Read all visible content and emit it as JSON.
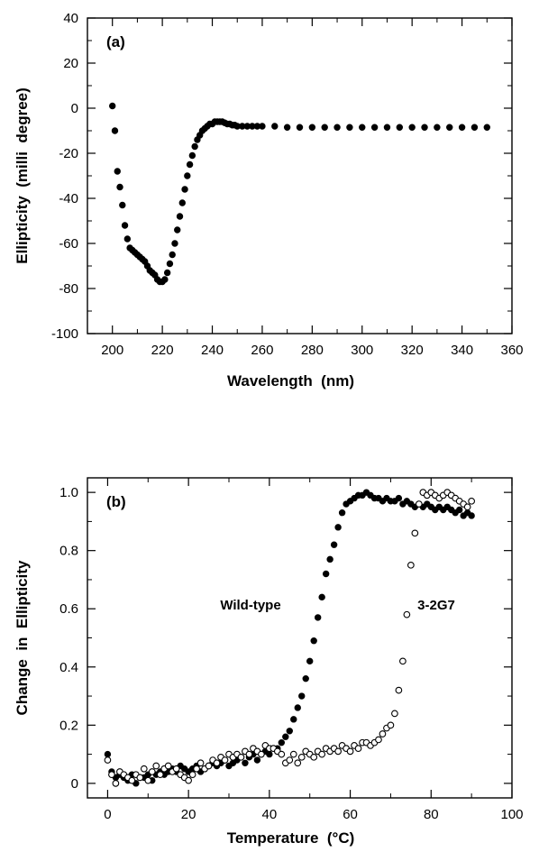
{
  "chart_data": [
    {
      "type": "scatter",
      "panel_label": "(a)",
      "xlabel": "Wavelength  (nm)",
      "ylabel": "Ellipticity  (milli  degree)",
      "xlim": [
        190,
        360
      ],
      "ylim": [
        -100,
        40
      ],
      "xticks": [
        200,
        220,
        240,
        260,
        280,
        300,
        320,
        340,
        360
      ],
      "yticks": [
        -100,
        -80,
        -60,
        -40,
        -20,
        0,
        20,
        40
      ],
      "grid": false,
      "series": [
        {
          "marker": "filled-circle",
          "color": "#000000",
          "x": [
            200,
            201,
            202,
            203,
            204,
            205,
            206,
            207,
            208,
            209,
            210,
            211,
            212,
            213,
            214,
            215,
            216,
            217,
            218,
            219,
            220,
            221,
            222,
            223,
            224,
            225,
            226,
            227,
            228,
            229,
            230,
            231,
            232,
            233,
            234,
            235,
            236,
            237,
            238,
            239,
            240,
            241,
            242,
            243,
            244,
            245,
            246,
            247,
            248,
            249,
            250,
            252,
            254,
            256,
            258,
            260,
            265,
            270,
            275,
            280,
            285,
            290,
            295,
            300,
            305,
            310,
            315,
            320,
            325,
            330,
            335,
            340,
            345,
            350
          ],
          "y": [
            1,
            -10,
            -28,
            -35,
            -43,
            -52,
            -58,
            -62,
            -63,
            -64,
            -65,
            -66,
            -67,
            -68,
            -70,
            -72,
            -73,
            -74,
            -76,
            -77,
            -77,
            -76,
            -73,
            -69,
            -65,
            -60,
            -54,
            -48,
            -42,
            -36,
            -30,
            -25,
            -21,
            -17,
            -14,
            -12,
            -10,
            -9,
            -8,
            -7,
            -7,
            -6,
            -6,
            -6,
            -6,
            -6.5,
            -7,
            -7,
            -7.5,
            -7.5,
            -8,
            -8,
            -8,
            -8,
            -8,
            -8,
            -8,
            -8.5,
            -8.5,
            -8.5,
            -8.5,
            -8.5,
            -8.5,
            -8.5,
            -8.5,
            -8.5,
            -8.5,
            -8.5,
            -8.5,
            -8.5,
            -8.5,
            -8.5,
            -8.5,
            -8.5
          ]
        }
      ]
    },
    {
      "type": "scatter",
      "panel_label": "(b)",
      "xlabel": "Temperature  (°C)",
      "ylabel": "Change  in  Ellipticity",
      "xlim": [
        -5,
        100
      ],
      "ylim": [
        -0.05,
        1.05
      ],
      "xticks": [
        0,
        20,
        40,
        60,
        80,
        100
      ],
      "yticks": [
        0,
        0.2,
        0.4,
        0.6,
        0.8,
        1.0
      ],
      "ytick_labels": [
        "0",
        "0.2",
        "0.4",
        "0.6",
        "0.8",
        "1.0"
      ],
      "grid": false,
      "series": [
        {
          "name": "Wild-type",
          "marker": "filled-circle",
          "color": "#000000",
          "x": [
            0,
            1,
            2,
            3,
            4,
            5,
            6,
            7,
            8,
            9,
            10,
            11,
            12,
            13,
            14,
            15,
            16,
            17,
            18,
            19,
            20,
            21,
            22,
            23,
            24,
            25,
            26,
            27,
            28,
            29,
            30,
            31,
            32,
            33,
            34,
            35,
            36,
            37,
            38,
            39,
            40,
            41,
            42,
            43,
            44,
            45,
            46,
            47,
            48,
            49,
            50,
            51,
            52,
            53,
            54,
            55,
            56,
            57,
            58,
            59,
            60,
            61,
            62,
            63,
            64,
            65,
            66,
            67,
            68,
            69,
            70,
            71,
            72,
            73,
            74,
            75,
            76,
            77,
            78,
            79,
            80,
            81,
            82,
            83,
            84,
            85,
            86,
            87,
            88,
            89,
            90
          ],
          "y": [
            0.1,
            0.04,
            0.02,
            0.03,
            0.02,
            0.01,
            0.03,
            0.0,
            0.02,
            0.02,
            0.03,
            0.01,
            0.03,
            0.04,
            0.03,
            0.04,
            0.05,
            0.04,
            0.06,
            0.05,
            0.04,
            0.05,
            0.06,
            0.04,
            0.05,
            0.06,
            0.07,
            0.06,
            0.07,
            0.08,
            0.06,
            0.07,
            0.08,
            0.09,
            0.07,
            0.09,
            0.1,
            0.08,
            0.1,
            0.11,
            0.1,
            0.12,
            0.12,
            0.14,
            0.16,
            0.18,
            0.22,
            0.26,
            0.3,
            0.36,
            0.42,
            0.49,
            0.57,
            0.64,
            0.72,
            0.77,
            0.82,
            0.88,
            0.93,
            0.96,
            0.97,
            0.98,
            0.99,
            0.99,
            1.0,
            0.99,
            0.98,
            0.98,
            0.97,
            0.98,
            0.97,
            0.97,
            0.98,
            0.96,
            0.97,
            0.96,
            0.95,
            0.96,
            0.95,
            0.96,
            0.95,
            0.94,
            0.95,
            0.94,
            0.95,
            0.94,
            0.93,
            0.94,
            0.92,
            0.93,
            0.92
          ]
        },
        {
          "name": "3-2G7",
          "marker": "open-circle",
          "color": "#000000",
          "x": [
            0,
            1,
            2,
            3,
            4,
            5,
            6,
            7,
            8,
            9,
            10,
            11,
            12,
            13,
            14,
            15,
            16,
            17,
            18,
            19,
            20,
            21,
            22,
            23,
            24,
            25,
            26,
            27,
            28,
            29,
            30,
            31,
            32,
            33,
            34,
            35,
            36,
            37,
            38,
            39,
            40,
            41,
            42,
            43,
            44,
            45,
            46,
            47,
            48,
            49,
            50,
            51,
            52,
            53,
            54,
            55,
            56,
            57,
            58,
            59,
            60,
            61,
            62,
            63,
            64,
            65,
            66,
            67,
            68,
            69,
            70,
            71,
            72,
            73,
            74,
            75,
            76,
            77,
            78,
            79,
            80,
            81,
            82,
            83,
            84,
            85,
            86,
            87,
            88,
            89,
            90
          ],
          "y": [
            0.08,
            0.03,
            0.0,
            0.04,
            0.03,
            0.02,
            0.01,
            0.03,
            0.02,
            0.05,
            0.01,
            0.04,
            0.06,
            0.03,
            0.05,
            0.06,
            0.04,
            0.05,
            0.03,
            0.02,
            0.01,
            0.03,
            0.05,
            0.07,
            0.05,
            0.06,
            0.08,
            0.07,
            0.09,
            0.08,
            0.1,
            0.09,
            0.1,
            0.09,
            0.11,
            0.1,
            0.12,
            0.11,
            0.1,
            0.13,
            0.12,
            0.12,
            0.11,
            0.1,
            0.07,
            0.08,
            0.1,
            0.07,
            0.09,
            0.11,
            0.1,
            0.09,
            0.11,
            0.1,
            0.12,
            0.11,
            0.12,
            0.11,
            0.13,
            0.12,
            0.11,
            0.13,
            0.12,
            0.14,
            0.14,
            0.13,
            0.14,
            0.15,
            0.17,
            0.19,
            0.2,
            0.24,
            0.32,
            0.42,
            0.58,
            0.75,
            0.86,
            0.96,
            1.0,
            0.99,
            1.0,
            0.99,
            0.98,
            0.99,
            1.0,
            0.99,
            0.98,
            0.97,
            0.96,
            0.95,
            0.97
          ]
        }
      ]
    }
  ]
}
